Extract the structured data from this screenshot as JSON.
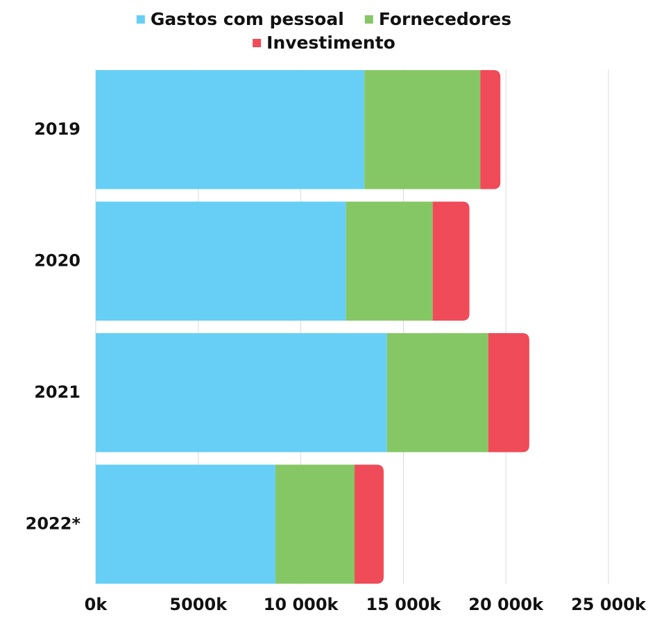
{
  "chart_data": {
    "type": "stacked-barh",
    "categories": [
      "2019",
      "2020",
      "2021",
      "2022*"
    ],
    "series": [
      {
        "name": "Gastos com pessoal",
        "color": "#67cff5",
        "values": [
          13100,
          12200,
          14200,
          8760
        ]
      },
      {
        "name": "Fornecedores",
        "color": "#86c765",
        "values": [
          5650,
          4230,
          4940,
          3860
        ]
      },
      {
        "name": "Investimento",
        "color": "#f04b58",
        "values": [
          980,
          1790,
          2000,
          1420
        ]
      }
    ],
    "xlim": [
      0,
      25000
    ],
    "xticks": [
      {
        "value": 0,
        "label": "0k"
      },
      {
        "value": 5000,
        "label": "5000k"
      },
      {
        "value": 10000,
        "label": "10 000k"
      },
      {
        "value": 15000,
        "label": "15 000k"
      },
      {
        "value": 20000,
        "label": "20 000k"
      },
      {
        "value": 25000,
        "label": "25 000k"
      }
    ],
    "grid": true,
    "legend": "top"
  }
}
